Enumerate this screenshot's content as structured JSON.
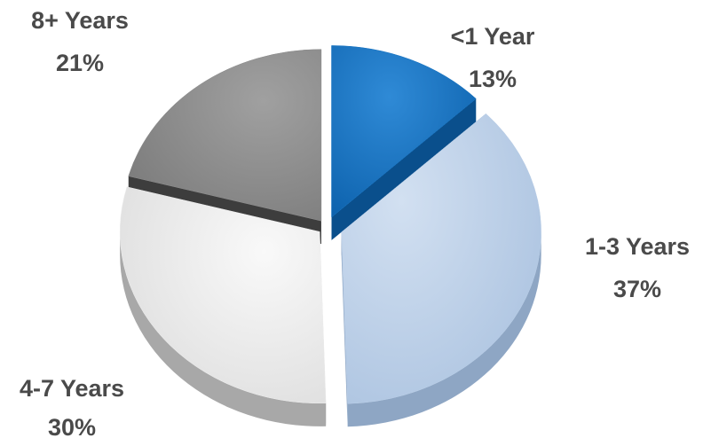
{
  "chart_data": {
    "type": "pie",
    "title": "",
    "legend": "none",
    "categories": [
      "<1 Year",
      "1-3 Years",
      "4-7 Years",
      "8+ Years"
    ],
    "values": [
      13,
      37,
      30,
      21
    ],
    "value_labels": [
      "13%",
      "37%",
      "30%",
      "21%"
    ],
    "colors": [
      "#1170c0",
      "#b8cde6",
      "#ededed",
      "#8a8a8a"
    ],
    "style": "3d-exploded"
  }
}
